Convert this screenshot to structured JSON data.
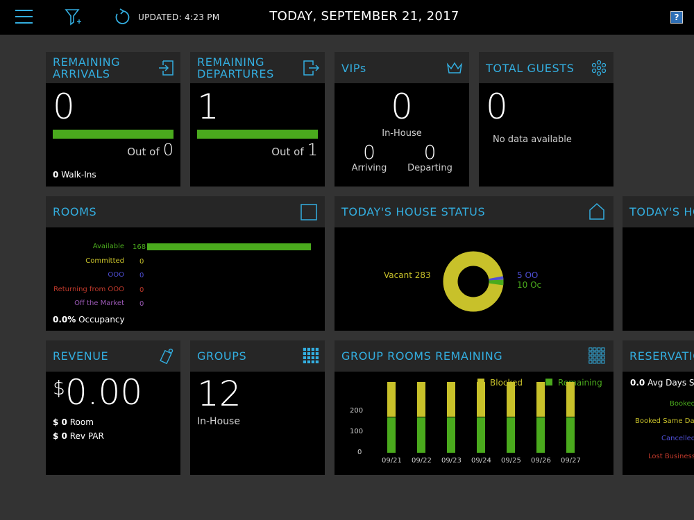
{
  "topbar": {
    "updated": "UPDATED: 4:23 PM",
    "date": "TODAY, SEPTEMBER 21, 2017",
    "help": "?"
  },
  "colors": {
    "accent": "#33aee0",
    "green": "#4aaa1d",
    "yellow": "#c8c12a",
    "blue": "#4f4fd6",
    "red": "#c0392b",
    "purple": "#9b59b6"
  },
  "arrivals": {
    "title_line1": "REMAINING",
    "title_line2": "ARRIVALS",
    "value": "0",
    "out_of_label": "Out of",
    "out_of_value": "0",
    "walkins_value": "0",
    "walkins_label": "Walk-Ins",
    "progress": 1.0
  },
  "departures": {
    "title_line1": "REMAINING",
    "title_line2": "DEPARTURES",
    "value": "1",
    "out_of_label": "Out of",
    "out_of_value": "1",
    "progress": 1.0
  },
  "vips": {
    "title": "VIPs",
    "value": "0",
    "inhouse_label": "In-House",
    "arriving_value": "0",
    "arriving_label": "Arriving",
    "departing_value": "0",
    "departing_label": "Departing"
  },
  "guests": {
    "title": "TOTAL GUESTS",
    "value": "0",
    "message": "No data available"
  },
  "rooms": {
    "title": "ROOMS",
    "rows": [
      {
        "label": "Available",
        "value": "168"
      },
      {
        "label": "Committed",
        "value": "0"
      },
      {
        "label": "OOO",
        "value": "0"
      },
      {
        "label": "Returning from OOO",
        "value": "0"
      },
      {
        "label": "Off the Market",
        "value": "0"
      }
    ],
    "occupancy_value": "0.0%",
    "occupancy_label": "Occupancy"
  },
  "house_status": {
    "title": "TODAY'S HOUSE STATUS",
    "vacant_label": "Vacant 283",
    "label_blue": "5 OO",
    "label_green": "10 Oc"
  },
  "house_status_2": {
    "title": "TODAY'S HO"
  },
  "revenue": {
    "title": "REVENUE",
    "currency": "$",
    "amount": "0.00",
    "room_value": "$ 0",
    "room_label": "Room",
    "revpar_value": "$ 0",
    "revpar_label": "Rev PAR"
  },
  "groups": {
    "title": "GROUPS",
    "value": "12",
    "label": "In-House"
  },
  "group_rooms": {
    "title": "GROUP ROOMS REMAINING",
    "legend_blocked": "Blocked",
    "legend_remaining": "Remaining",
    "y_ticks": [
      "200",
      "100",
      "0"
    ]
  },
  "chart_data": {
    "type": "bar",
    "categories": [
      "09/21",
      "09/22",
      "09/23",
      "09/24",
      "09/25",
      "09/26",
      "09/27"
    ],
    "series": [
      {
        "name": "Blocked",
        "values": [
          130,
          130,
          130,
          130,
          130,
          130,
          130
        ]
      },
      {
        "name": "Remaining",
        "values": [
          130,
          130,
          130,
          130,
          130,
          130,
          130
        ]
      }
    ],
    "ylim": [
      0,
      260
    ],
    "stacked": true
  },
  "reservations": {
    "title": "RESERVATIO",
    "avg_value": "0.0",
    "avg_label": "Avg Days St",
    "rows": [
      {
        "label": "Booked"
      },
      {
        "label": "Booked Same Day"
      },
      {
        "label": "Cancelled"
      },
      {
        "label": "Lost Business"
      }
    ]
  }
}
